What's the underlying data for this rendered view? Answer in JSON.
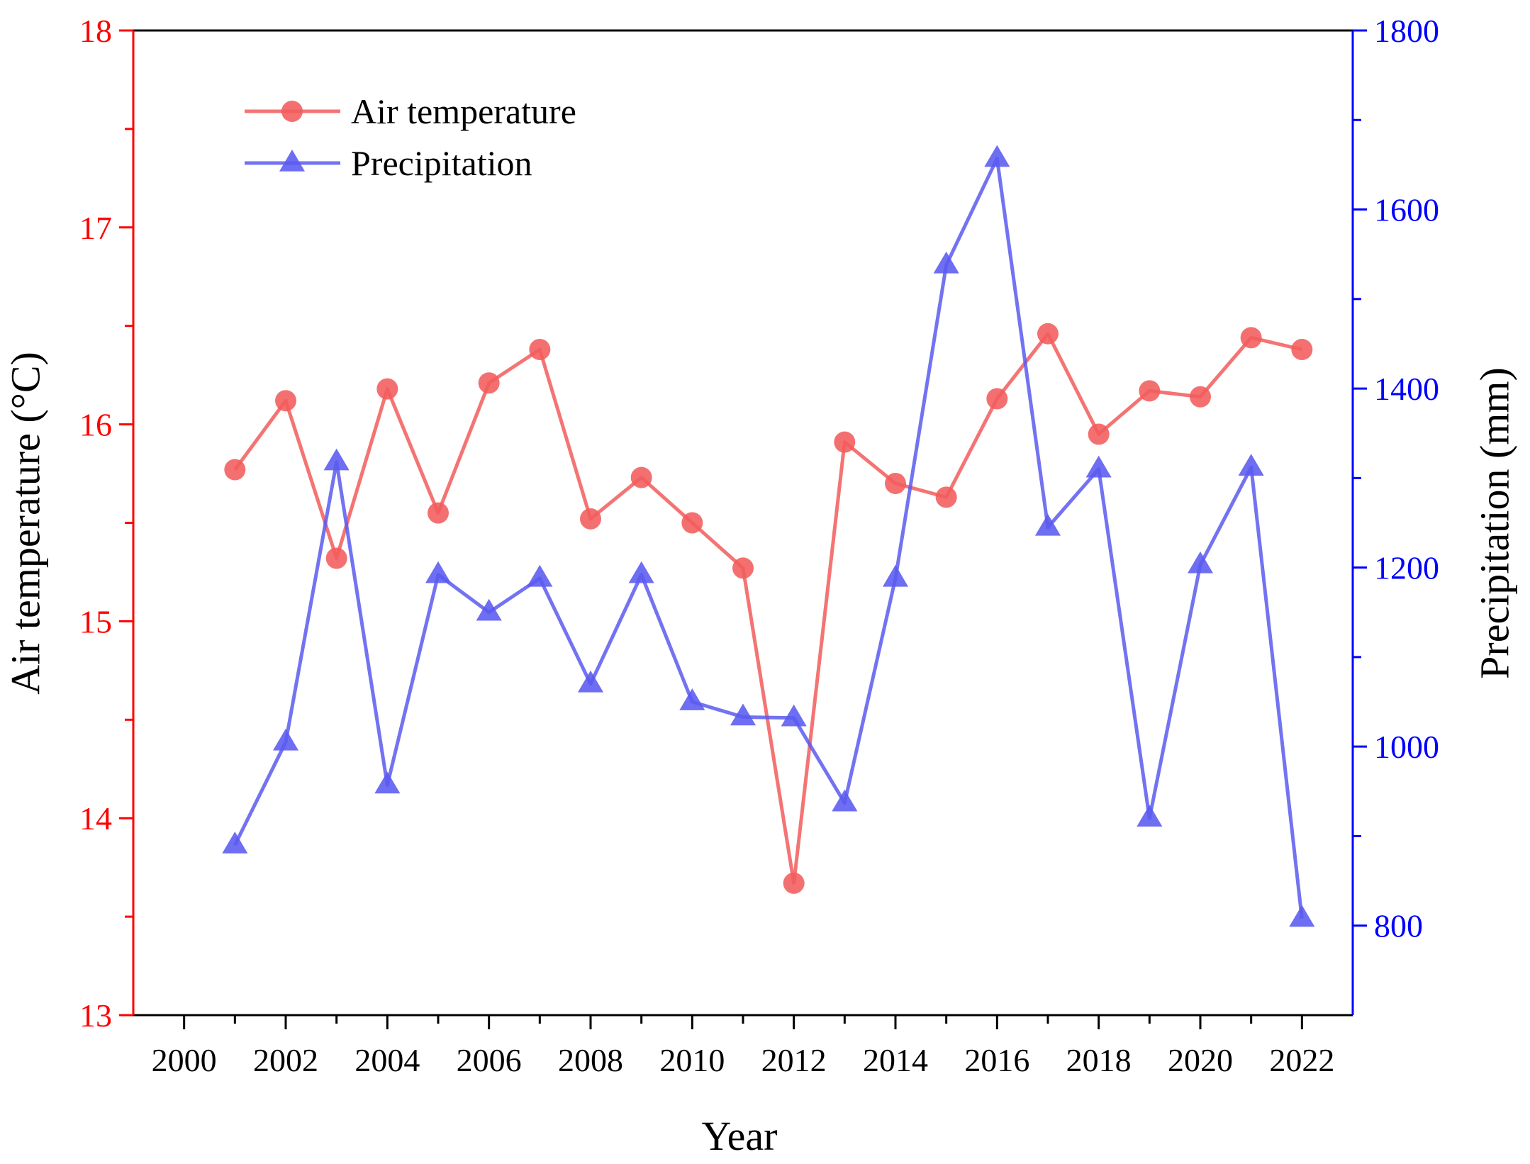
{
  "chart_data": {
    "type": "line",
    "title": "",
    "xlabel": "Year",
    "ylabel_left": "Air temperature (°C)",
    "ylabel_right": "Precipitation (mm)",
    "x": [
      2001,
      2002,
      2003,
      2004,
      2005,
      2006,
      2007,
      2008,
      2009,
      2010,
      2011,
      2012,
      2013,
      2014,
      2015,
      2016,
      2017,
      2018,
      2019,
      2020,
      2021,
      2022
    ],
    "xlim": [
      1999,
      2023
    ],
    "xticks": [
      "2000",
      "2002",
      "2004",
      "2006",
      "2008",
      "2010",
      "2012",
      "2014",
      "2016",
      "2018",
      "2020",
      "2022"
    ],
    "ylim_left": [
      13,
      18
    ],
    "yticks_left": [
      "13",
      "14",
      "15",
      "16",
      "17",
      "18"
    ],
    "ylim_right": [
      700,
      1800
    ],
    "yticks_right": [
      "800",
      "1000",
      "1200",
      "1400",
      "1600",
      "1800"
    ],
    "grid": false,
    "legend_position": "top-left",
    "series": [
      {
        "name": "Air temperature",
        "axis": "left",
        "marker": "circle",
        "color": "#f25c5c",
        "values": [
          15.77,
          16.12,
          15.32,
          16.18,
          15.55,
          16.21,
          16.38,
          15.52,
          15.73,
          15.5,
          15.27,
          13.67,
          15.91,
          15.7,
          15.63,
          16.13,
          16.46,
          15.95,
          16.17,
          16.14,
          16.44,
          16.38
        ]
      },
      {
        "name": "Precipitation",
        "axis": "right",
        "marker": "triangle",
        "color": "#5a5af0",
        "values": [
          890,
          1005,
          1318,
          957,
          1192,
          1150,
          1188,
          1070,
          1192,
          1050,
          1033,
          1032,
          937,
          1188,
          1538,
          1657,
          1245,
          1310,
          920,
          1203,
          1312,
          808
        ]
      }
    ],
    "colors": {
      "left_axis": "#ff0000",
      "right_axis": "#0000ff",
      "frame": "#000000"
    }
  }
}
